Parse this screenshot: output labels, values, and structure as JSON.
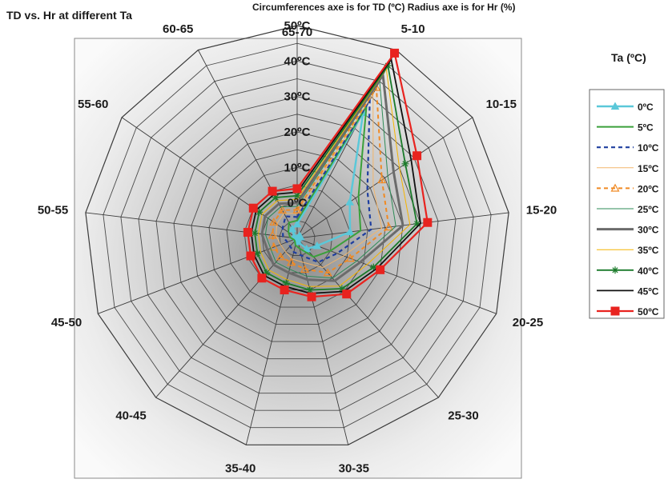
{
  "chart_data": {
    "type": "radar",
    "title": "TD vs. Hr at different Ta",
    "subtitle": "Circumferences axe is for TD (ºC) Radius axe is for Hr (%)",
    "legend_title": "Ta (ºC)",
    "legend_position": "right",
    "categories": [
      "65-70",
      "5-10",
      "10-15",
      "15-20",
      "20-25",
      "25-30",
      "30-35",
      "35-40",
      "40-45",
      "45-50",
      "50-55",
      "55-60",
      "60-65"
    ],
    "radial_ticks": [
      "0ºC",
      "10ºC",
      "20ºC",
      "30ºC",
      "40ºC",
      "50ºC"
    ],
    "rlim": [
      -10,
      50
    ],
    "grid": true,
    "series": [
      {
        "name": "0ºC",
        "color": "#5bc8d9",
        "dash": "",
        "marker": "triangle",
        "width": 2.5,
        "values": [
          -6,
          30,
          8,
          5,
          -4,
          -6,
          -9,
          -10,
          -11,
          -11,
          -10,
          -9,
          -7
        ]
      },
      {
        "name": "5ºC",
        "color": "#3aa03a",
        "dash": "",
        "marker": "none",
        "width": 2,
        "values": [
          -5,
          32,
          11,
          8,
          0,
          -3,
          -7,
          -8,
          -9,
          -9,
          -8,
          -7,
          -5
        ]
      },
      {
        "name": "10ºC",
        "color": "#1f3f9f",
        "dash": "5,4",
        "marker": "none",
        "width": 2.2,
        "values": [
          -4,
          34,
          14,
          11,
          2,
          -1,
          -5,
          -6,
          -7,
          -7,
          -6,
          -5,
          -3
        ]
      },
      {
        "name": "15ºC",
        "color": "#f2b56b",
        "dash": "",
        "marker": "none",
        "width": 1,
        "values": [
          -3,
          36,
          16,
          14,
          4,
          1,
          -3,
          -4,
          -5,
          -5,
          -4,
          -3,
          -2
        ]
      },
      {
        "name": "20ºC",
        "color": "#f08a24",
        "dash": "5,4",
        "marker": "triangle-open",
        "width": 2,
        "values": [
          -2,
          38,
          19,
          16,
          6,
          3,
          -1,
          -3,
          -3,
          -3,
          -3,
          -2,
          -1
        ]
      },
      {
        "name": "25ºC",
        "color": "#2e8b57",
        "dash": "",
        "marker": "none",
        "width": 1,
        "values": [
          -1,
          40,
          21,
          18,
          8,
          5,
          1,
          -1,
          -1,
          -2,
          -1,
          0,
          0
        ]
      },
      {
        "name": "30ºC",
        "color": "#6b6b6b",
        "dash": "",
        "marker": "none",
        "width": 3,
        "values": [
          0,
          42,
          23,
          20,
          9,
          6,
          2,
          0,
          0,
          -1,
          0,
          1,
          1
        ]
      },
      {
        "name": "35ºC",
        "color": "#f5b400",
        "dash": "",
        "marker": "none",
        "width": 1,
        "values": [
          1,
          44,
          25,
          22,
          11,
          8,
          4,
          2,
          2,
          1,
          1,
          2,
          2
        ]
      },
      {
        "name": "40ºC",
        "color": "#1a7a2a",
        "dash": "",
        "marker": "star",
        "width": 1.8,
        "values": [
          2,
          45,
          27,
          24,
          13,
          9,
          5,
          3,
          3,
          2,
          2,
          3,
          3
        ]
      },
      {
        "name": "45ºC",
        "color": "#111111",
        "dash": "",
        "marker": "none",
        "width": 1.8,
        "values": [
          3,
          47,
          29,
          25,
          14,
          10,
          6,
          4,
          4,
          3,
          3,
          4,
          4
        ]
      },
      {
        "name": "50ºC",
        "color": "#e8231f",
        "dash": "",
        "marker": "square",
        "width": 2.2,
        "values": [
          4,
          49,
          31,
          27,
          15,
          11,
          7,
          5,
          5,
          4,
          4,
          5,
          5
        ]
      }
    ]
  }
}
